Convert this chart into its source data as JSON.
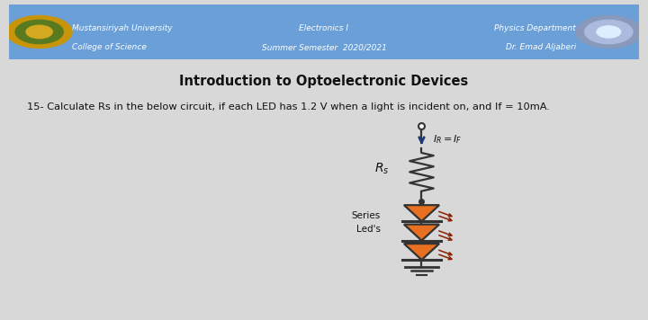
{
  "header_bg_color": "#6a9fd8",
  "header_text_color": "#ffffff",
  "header_left_line1": "Mustansiriyah University",
  "header_left_line2": "College of Science",
  "header_center_line1": "Electronics I",
  "header_center_line2": "Summer Semester  2020/2021",
  "header_right_line1": "Physics Department",
  "header_right_line2": "Dr. Emad Aljaberi",
  "title": "Introduction to Optoelectronic Devices",
  "question": "15- Calculate Rs in the below circuit, if each LED has 1.2 V when a light is incident on, and If = 10mA.",
  "outer_bg_color": "#d8d8d8",
  "body_bg_color": "#ffffff",
  "led_color": "#e87020",
  "wire_color": "#333333",
  "resistor_color": "#333333",
  "arrow_color": "#1a3a7a",
  "ray_color": "#8b2000",
  "label_series": "Series\nLed's"
}
